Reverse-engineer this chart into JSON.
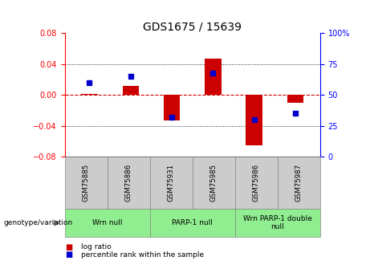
{
  "title": "GDS1675 / 15639",
  "samples": [
    "GSM75885",
    "GSM75886",
    "GSM75931",
    "GSM75985",
    "GSM75986",
    "GSM75987"
  ],
  "log_ratios": [
    0.001,
    0.012,
    -0.033,
    0.047,
    -0.065,
    -0.01
  ],
  "percentile_ranks": [
    60,
    65,
    32,
    68,
    30,
    35
  ],
  "ylim_left": [
    -0.08,
    0.08
  ],
  "ylim_right": [
    0,
    100
  ],
  "yticks_left": [
    -0.08,
    -0.04,
    0,
    0.04,
    0.08
  ],
  "yticks_right": [
    0,
    25,
    50,
    75,
    100
  ],
  "groups": [
    {
      "label": "Wrn null",
      "start": 0,
      "end": 2,
      "color": "#90ee90"
    },
    {
      "label": "PARP-1 null",
      "start": 2,
      "end": 4,
      "color": "#90ee90"
    },
    {
      "label": "Wrn PARP-1 double\nnull",
      "start": 4,
      "end": 6,
      "color": "#90ee90"
    }
  ],
  "bar_color": "#cc0000",
  "dot_color": "#0000cc",
  "zero_line_color": "#cc0000",
  "bg_color": "#ffffff",
  "title_fontsize": 10,
  "tick_fontsize": 7,
  "label_fontsize": 7,
  "genotype_label": "genotype/variation",
  "legend_items": [
    {
      "label": "log ratio",
      "color": "#cc0000"
    },
    {
      "label": "percentile rank within the sample",
      "color": "#0000cc"
    }
  ]
}
